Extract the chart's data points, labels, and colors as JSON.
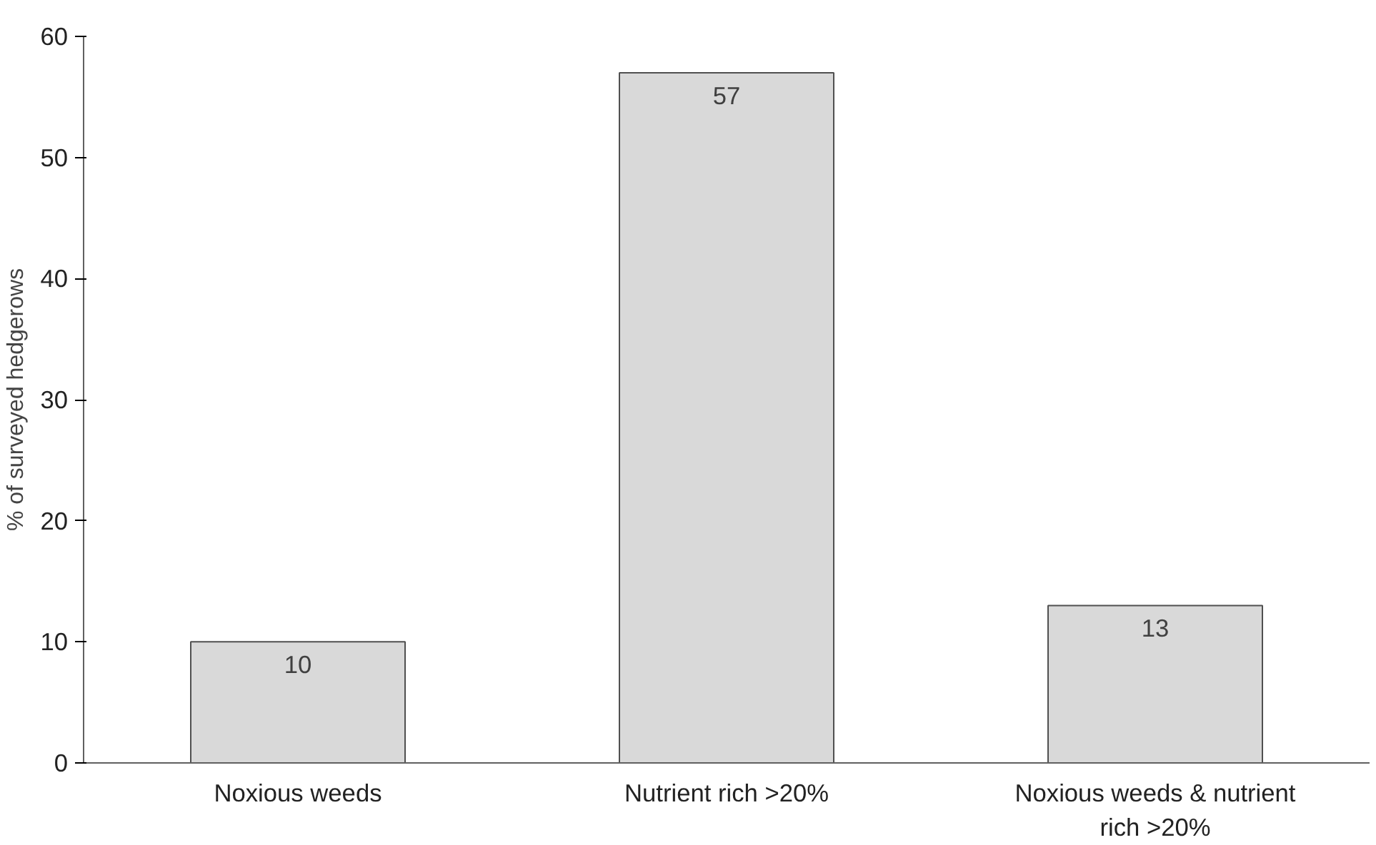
{
  "chart_data": {
    "type": "bar",
    "ylabel": "% of surveyed hedgerows",
    "categories": [
      "Noxious weeds",
      "Nutrient rich >20%",
      "Noxious weeds & nutrient rich >20%"
    ],
    "values": [
      10,
      57,
      13
    ],
    "color": "#d9d9d9",
    "ylim": [
      0,
      60
    ],
    "yticks": [
      0,
      10,
      20,
      30,
      40,
      50,
      60
    ],
    "grid": false,
    "data_labels": true
  }
}
